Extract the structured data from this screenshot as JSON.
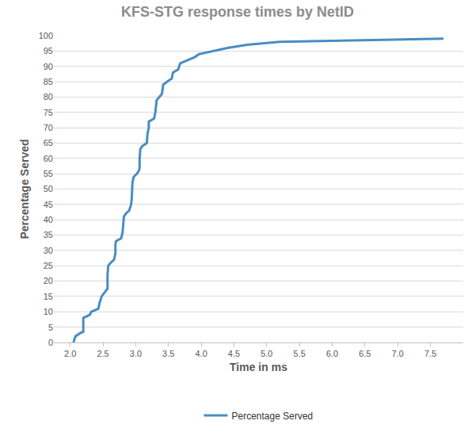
{
  "chart_data": {
    "type": "line",
    "title": "KFS-STG response times by NetID",
    "x_label": "Time in ms",
    "y_label": "Percentage Served",
    "legend": "bottom",
    "grid": true,
    "xlim": [
      1.75,
      8.0
    ],
    "ylim": [
      0,
      100
    ],
    "xticks": [
      {
        "value": 2,
        "label": "2.0"
      },
      {
        "value": 2.5,
        "label": "2.5"
      },
      {
        "value": 3,
        "label": "3.0"
      },
      {
        "value": 3.5,
        "label": "3.5"
      },
      {
        "value": 4,
        "label": "4.0"
      },
      {
        "value": 4.5,
        "label": "4.5"
      },
      {
        "value": 5,
        "label": "5.0"
      },
      {
        "value": 5.5,
        "label": "5.5"
      },
      {
        "value": 6,
        "label": "6.0"
      },
      {
        "value": 6.5,
        "label": "6.5"
      },
      {
        "value": 7,
        "label": "7.0"
      },
      {
        "value": 7.5,
        "label": "7.5"
      }
    ],
    "yticks": [
      0,
      5,
      10,
      15,
      20,
      25,
      30,
      35,
      40,
      45,
      50,
      55,
      60,
      65,
      70,
      75,
      80,
      85,
      90,
      95,
      100
    ],
    "series": [
      {
        "name": "Percentage Served",
        "color": "#4a8cc3",
        "x": [
          2.05,
          2.08,
          2.15,
          2.2,
          2.2,
          2.3,
          2.32,
          2.43,
          2.45,
          2.48,
          2.55,
          2.57,
          2.57,
          2.58,
          2.62,
          2.67,
          2.69,
          2.69,
          2.7,
          2.78,
          2.8,
          2.81,
          2.82,
          2.85,
          2.9,
          2.93,
          2.94,
          2.95,
          2.97,
          3.02,
          3.05,
          3.06,
          3.06,
          3.07,
          3.1,
          3.17,
          3.18,
          3.2,
          3.2,
          3.28,
          3.3,
          3.31,
          3.32,
          3.4,
          3.42,
          3.48,
          3.55,
          3.57,
          3.65,
          3.68,
          3.8,
          3.9,
          3.97,
          4.2,
          4.4,
          4.7,
          5.2,
          7.7
        ],
        "values": [
          0,
          2,
          3,
          3.5,
          8,
          9,
          10,
          11,
          13,
          15,
          17,
          17.5,
          22,
          25,
          26,
          27,
          29,
          32,
          33,
          34,
          36,
          38,
          41,
          42,
          43,
          45,
          47,
          52,
          54,
          55,
          56,
          57,
          60,
          63,
          64,
          65,
          68,
          70,
          72,
          73,
          75,
          77,
          79,
          81,
          84,
          85,
          86,
          88,
          89,
          91,
          92,
          93,
          94,
          95,
          96,
          97,
          98,
          99
        ]
      }
    ]
  }
}
